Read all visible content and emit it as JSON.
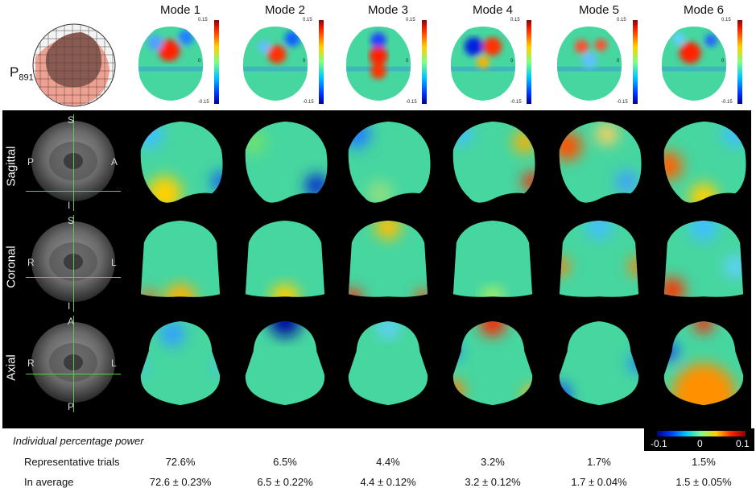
{
  "subject_label": "P",
  "subject_sub": "891",
  "modes": [
    "Mode 1",
    "Mode 2",
    "Mode 3",
    "Mode 4",
    "Mode 5",
    "Mode 6"
  ],
  "mode_colorbar": {
    "max": "0.15",
    "mid": "0",
    "min": "-0.15"
  },
  "views": [
    {
      "name": "Sagittal",
      "dirs": {
        "top": "S",
        "bottom": "I",
        "left": "P",
        "right": "A"
      }
    },
    {
      "name": "Coronal",
      "dirs": {
        "top": "S",
        "bottom": "I",
        "left": "R",
        "right": "L"
      }
    },
    {
      "name": "Axial",
      "dirs": {
        "top": "A",
        "bottom": "P",
        "left": "R",
        "right": "L"
      }
    }
  ],
  "legend": {
    "min": "-0.1",
    "mid": "0",
    "max": "0.1"
  },
  "table": {
    "title": "Individual percentage power",
    "rows": [
      {
        "label": "Representative trials",
        "values": [
          "72.6%",
          "6.5%",
          "4.4%",
          "3.2%",
          "1.7%",
          "1.5%"
        ]
      },
      {
        "label": "In average",
        "values": [
          "72.6 ± 0.23%",
          "6.5 ± 0.22%",
          "4.4 ± 0.12%",
          "3.2 ± 0.12%",
          "1.7 ± 0.04%",
          "1.5 ± 0.05%"
        ]
      }
    ]
  },
  "colors": {
    "panel_bg": "#000000",
    "base_field": "#46d6a0",
    "crosshair": "#4fd04f"
  }
}
